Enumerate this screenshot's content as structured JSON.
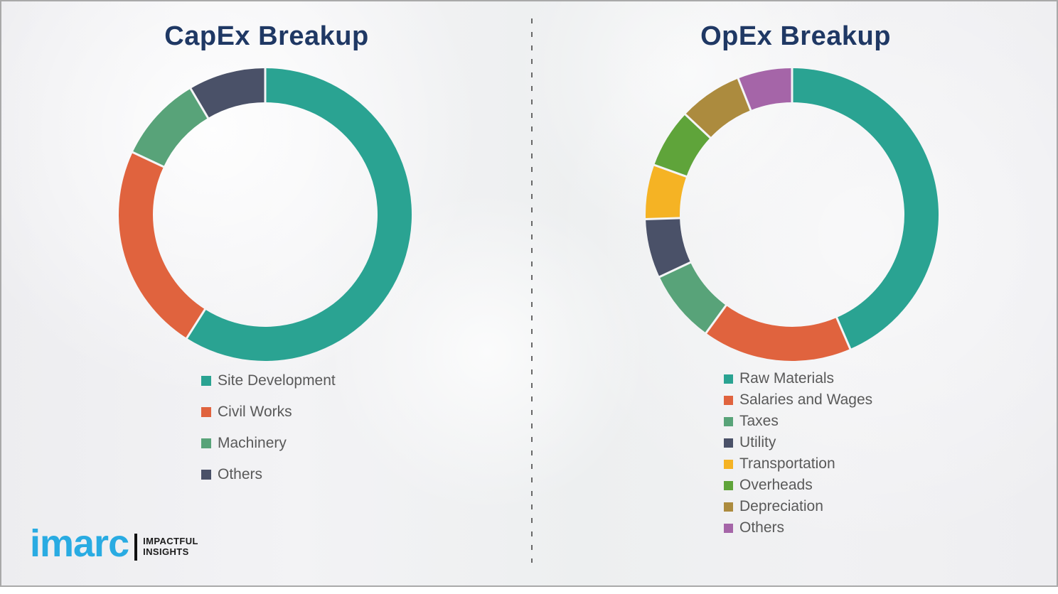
{
  "chart_data": [
    {
      "type": "pie",
      "donut": true,
      "title": "CapEx Breakup",
      "labels": [
        "Site Development",
        "Civil Works",
        "Machinery",
        "Others"
      ],
      "values": [
        59,
        23,
        9.5,
        8.5
      ],
      "values_note": "percent, estimated from arc angles (no data labels shown)",
      "colors": [
        "#2aa392",
        "#e0633e",
        "#58a379",
        "#4a5168"
      ],
      "start_angle_deg": 0,
      "direction": "clockwise",
      "legend_position": "below"
    },
    {
      "type": "pie",
      "donut": true,
      "title": "OpEx Breakup",
      "labels": [
        "Raw Materials",
        "Salaries and Wages",
        "Taxes",
        "Utility",
        "Transportation",
        "Overheads",
        "Depreciation",
        "Others"
      ],
      "values": [
        43.5,
        16.5,
        8,
        6.5,
        6,
        6.5,
        7,
        6
      ],
      "values_note": "percent, estimated from arc angles (no data labels shown)",
      "colors": [
        "#2aa392",
        "#e0633e",
        "#58a379",
        "#4a5168",
        "#f5b324",
        "#5fa43a",
        "#ac8b3e",
        "#a565a8"
      ],
      "start_angle_deg": 0,
      "direction": "clockwise",
      "legend_position": "below"
    }
  ],
  "logo": {
    "brand": "imarc",
    "tagline_line1": "IMPACTFUL",
    "tagline_line2": "INSIGHTS",
    "brand_color": "#29abe2"
  },
  "style": {
    "title_color": "#1f3864",
    "legend_text_color": "#595959",
    "divider_color": "#676767",
    "border_color": "#a9a9a9"
  }
}
